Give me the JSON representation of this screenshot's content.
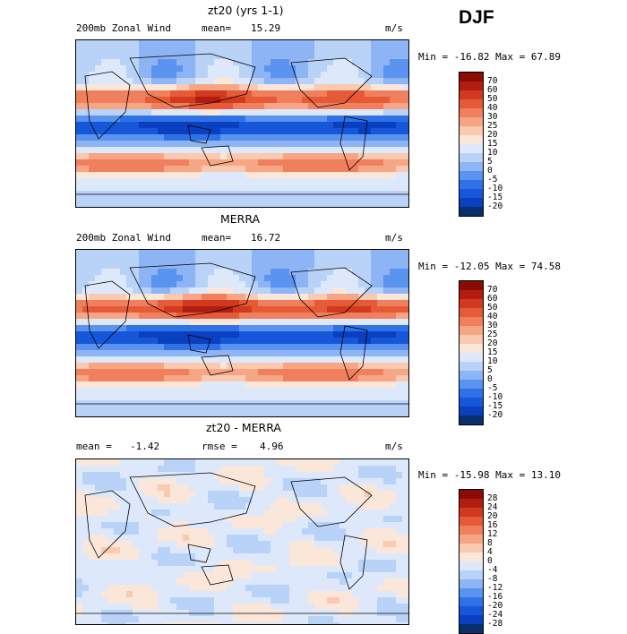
{
  "season": "DJF",
  "colors": {
    "wind": [
      "#08306b",
      "#0a3fbf",
      "#1657d9",
      "#2f72e8",
      "#5a93f0",
      "#8db4f5",
      "#b9d3f8",
      "#dde9fb",
      "#fbe6da",
      "#f9c9b0",
      "#f6a585",
      "#f0805d",
      "#e65a38",
      "#d13a1e",
      "#b11d0f",
      "#8b0b05"
    ],
    "diff": [
      "#08306b",
      "#0a3fbf",
      "#1657d9",
      "#2f72e8",
      "#5a93f0",
      "#8db4f5",
      "#b9d3f8",
      "#dde9fb",
      "#fbe6da",
      "#f9c9b0",
      "#f6a585",
      "#f0805d",
      "#e65a38",
      "#d13a1e",
      "#b11d0f",
      "#8b0b05"
    ]
  },
  "panels": [
    {
      "title": "zt20 (yrs 1-1)",
      "left": "200mb Zonal Wind",
      "stat1_label": "mean=",
      "stat1_value": "15.29",
      "stat2_label": "",
      "stat2_value": "",
      "units": "m/s",
      "minmax": "Min = -16.82 Max =  67.89",
      "scale": "wind",
      "levels": [
        "70",
        "60",
        "50",
        "40",
        "30",
        "25",
        "20",
        "15",
        "10",
        "5",
        "0",
        "-5",
        "-10",
        "-15",
        "-20"
      ]
    },
    {
      "title": "MERRA",
      "left": "200mb Zonal Wind",
      "stat1_label": "mean=",
      "stat1_value": "16.72",
      "stat2_label": "",
      "stat2_value": "",
      "units": "m/s",
      "minmax": "Min = -12.05 Max =  74.58",
      "scale": "wind",
      "levels": [
        "70",
        "60",
        "50",
        "40",
        "30",
        "25",
        "20",
        "15",
        "10",
        "5",
        "0",
        "-5",
        "-10",
        "-15",
        "-20"
      ]
    },
    {
      "title": "zt20 - MERRA",
      "left": "",
      "stat1_label": "mean =",
      "stat1_value": "-1.42",
      "stat2_label": "rmse =",
      "stat2_value": "4.96",
      "units": "m/s",
      "minmax": "Min = -15.98 Max =  13.10",
      "scale": "diff",
      "levels": [
        "28",
        "24",
        "20",
        "16",
        "12",
        "8",
        "4",
        "0",
        "-4",
        "-8",
        "-12",
        "-16",
        "-20",
        "-24",
        "-28"
      ]
    }
  ]
}
